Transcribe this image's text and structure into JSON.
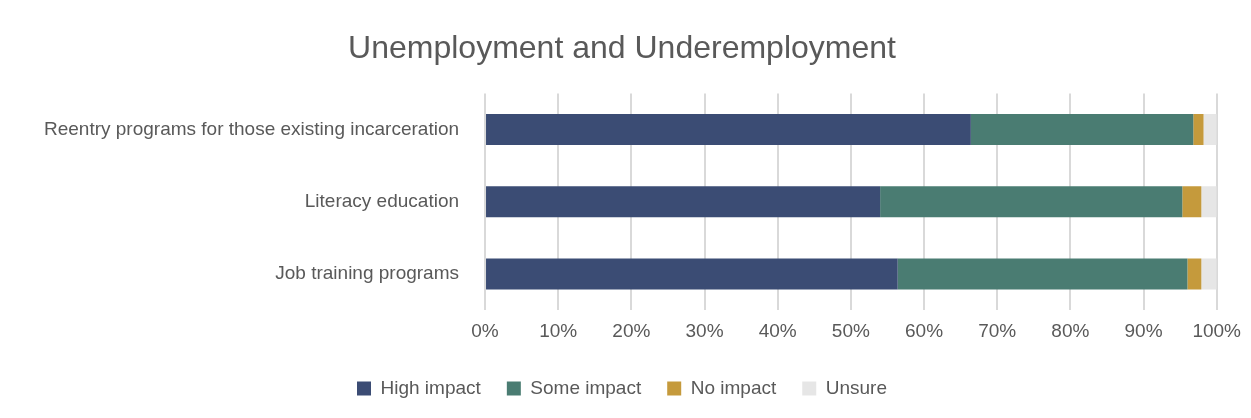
{
  "chart_data": {
    "type": "bar",
    "title": "Unemployment and Underemployment",
    "orientation": "horizontal",
    "stacked": true,
    "categories": [
      "Reentry programs for those existing incarceration",
      "Literacy education",
      "Job training programs"
    ],
    "series": [
      {
        "name": "High impact",
        "color": "#3b4c74",
        "values": [
          66.4,
          54.0,
          56.4
        ]
      },
      {
        "name": "Some impact",
        "color": "#4a7c72",
        "values": [
          30.4,
          41.3,
          39.6
        ]
      },
      {
        "name": "No impact",
        "color": "#c59a3c",
        "values": [
          1.4,
          2.6,
          1.9
        ]
      },
      {
        "name": "Unsure",
        "color": "#e6e6e6",
        "values": [
          1.8,
          2.1,
          2.1
        ]
      }
    ],
    "xlim": [
      0,
      100
    ],
    "xticks": [
      {
        "value": 0,
        "label": "0%"
      },
      {
        "value": 10,
        "label": "10%"
      },
      {
        "value": 20,
        "label": "20%"
      },
      {
        "value": 30,
        "label": "30%"
      },
      {
        "value": 40,
        "label": "40%"
      },
      {
        "value": 50,
        "label": "50%"
      },
      {
        "value": 60,
        "label": "60%"
      },
      {
        "value": 70,
        "label": "70%"
      },
      {
        "value": 80,
        "label": "80%"
      },
      {
        "value": 90,
        "label": "90%"
      },
      {
        "value": 100,
        "label": "100%"
      }
    ],
    "grid": "x",
    "legend": "bottom"
  }
}
